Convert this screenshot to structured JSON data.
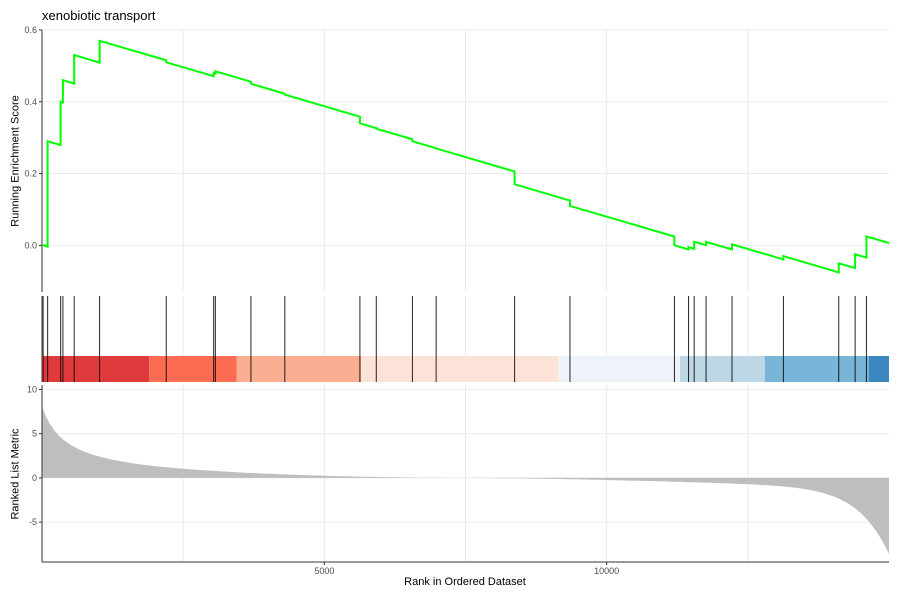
{
  "chart_data": {
    "type": "line",
    "title": "xenobiotic transport",
    "xlabel": "Rank in Ordered Dataset",
    "xlim": [
      0,
      15000
    ],
    "x_ticks": [
      5000,
      10000
    ],
    "x_tick_labels": [
      "5000",
      "10000"
    ],
    "panels": [
      {
        "name": "running-enrichment-score",
        "ylabel": "Running Enrichment Score",
        "ylim": [
          -0.13,
          0.6
        ],
        "y_ticks": [
          0.0,
          0.2,
          0.4,
          0.6
        ],
        "y_tick_labels": [
          "0.0",
          "0.2",
          "0.4",
          "0.6"
        ],
        "line_color": "#00ff00",
        "hit_ranks": [
          20,
          100,
          330,
          370,
          570,
          1020,
          2200,
          3040,
          3070,
          3700,
          4300,
          5630,
          5920,
          6560,
          6980,
          8370,
          9350,
          11200,
          11450,
          11550,
          11760,
          12220,
          13130,
          14110,
          14400,
          14600
        ],
        "peak_scores": [
          0.0,
          0.29,
          0.4,
          0.46,
          0.53,
          0.57,
          0.51,
          0.48,
          0.485,
          0.45,
          0.42,
          0.34,
          0.325,
          0.29,
          0.27,
          0.17,
          0.11,
          0.0,
          -0.005,
          0.01,
          0.01,
          0.003,
          -0.03,
          -0.05,
          -0.025,
          0.025
        ],
        "end_score": 0.002
      },
      {
        "name": "rank-color-bar",
        "segments": [
          {
            "start": 0,
            "end": 1900,
            "color": "#e03a3c"
          },
          {
            "start": 1900,
            "end": 3450,
            "color": "#fb6c52"
          },
          {
            "start": 3450,
            "end": 5650,
            "color": "#fcae92"
          },
          {
            "start": 5650,
            "end": 9150,
            "color": "#fde2d8"
          },
          {
            "start": 9150,
            "end": 11300,
            "color": "#eef3fa"
          },
          {
            "start": 11300,
            "end": 12800,
            "color": "#bdd7e7"
          },
          {
            "start": 12800,
            "end": 14640,
            "color": "#79b4d9"
          },
          {
            "start": 14640,
            "end": 15000,
            "color": "#3d87c0"
          }
        ]
      },
      {
        "name": "ranked-list-metric",
        "ylabel": "Ranked List Metric",
        "ylim": [
          -9.5,
          10.5
        ],
        "y_ticks": [
          -5,
          0,
          5,
          10
        ],
        "y_tick_labels": [
          "-5",
          "0",
          "5",
          "10"
        ],
        "area_color": "#bebebe",
        "zero_cross_rank": 7400,
        "start_value": 8.5,
        "end_value": -8.6
      }
    ]
  }
}
